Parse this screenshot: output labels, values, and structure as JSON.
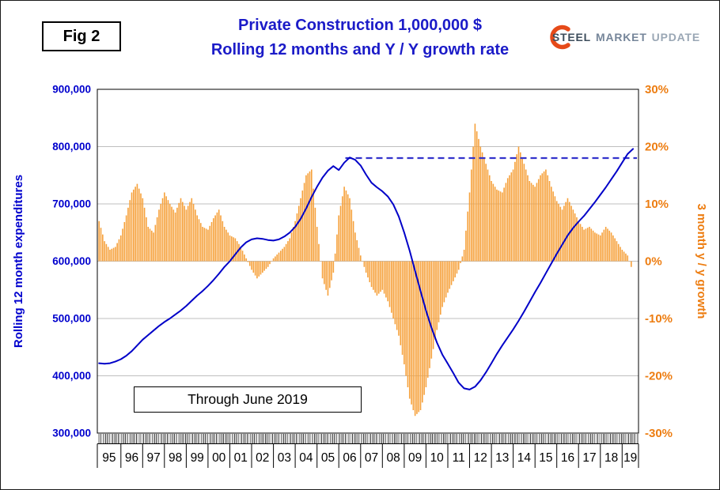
{
  "fig_label": "Fig 2",
  "logo": {
    "steel": "STEEL",
    "market": "MARKET",
    "update": "UPDATE"
  },
  "chart_data": {
    "type": "combo-bar-line",
    "title": "Private Construction 1,000,000 $",
    "subtitle": "Rolling 12 months and Y / Y growth rate",
    "annotation": "Through June 2019",
    "grid": "horizontal",
    "left_axis": {
      "label": "Rolling 12 month expenditures",
      "min": 300000,
      "max": 900000,
      "step": 100000,
      "ticks": [
        "900,000",
        "800,000",
        "700,000",
        "600,000",
        "500,000",
        "400,000",
        "300,000"
      ],
      "color": "#0000cd"
    },
    "right_axis": {
      "label": "3 month y / y growth",
      "min": -30,
      "max": 30,
      "step": 10,
      "ticks": [
        "30%",
        "20%",
        "10%",
        "0%",
        "-10%",
        "-20%",
        "-30%"
      ],
      "color": "#ed7d11"
    },
    "x_axis": {
      "start_year": 1995,
      "data_end": 2019.42,
      "end_label": "June 2019",
      "year_labels": [
        "95",
        "96",
        "97",
        "98",
        "99",
        "00",
        "01",
        "02",
        "03",
        "04",
        "05",
        "06",
        "07",
        "08",
        "09",
        "10",
        "11",
        "12",
        "13",
        "14",
        "15",
        "16",
        "17",
        "18",
        "19"
      ]
    },
    "line_series": {
      "name": "Rolling 12 month expenditures",
      "color": "#0000c8",
      "x_start": 1995.0,
      "x_step": 0.25,
      "values": [
        422000,
        421000,
        422000,
        425000,
        429000,
        435000,
        443000,
        453000,
        463000,
        471000,
        479000,
        487000,
        494000,
        500000,
        507000,
        514000,
        522000,
        531000,
        540000,
        548000,
        557000,
        567000,
        578000,
        590000,
        600000,
        612000,
        624000,
        633000,
        638000,
        640000,
        639000,
        637000,
        636000,
        638000,
        643000,
        650000,
        660000,
        674000,
        692000,
        712000,
        730000,
        746000,
        758000,
        766000,
        759000,
        772000,
        781000,
        777000,
        767000,
        751000,
        737000,
        729000,
        722000,
        713000,
        699000,
        678000,
        650000,
        618000,
        583000,
        548000,
        514000,
        484000,
        458000,
        437000,
        421000,
        405000,
        388000,
        378000,
        376000,
        381000,
        392000,
        406000,
        422000,
        438000,
        453000,
        467000,
        481000,
        496000,
        512000,
        529000,
        546000,
        562000,
        579000,
        596000,
        613000,
        629000,
        645000,
        658000,
        669000,
        679000,
        691000,
        703000,
        716000,
        729000,
        743000,
        757000,
        772000,
        787000,
        796000
      ]
    },
    "bar_series": {
      "name": "3 month y / y growth",
      "unit": "%",
      "color": "#f6a13b",
      "x_start": 1995.0,
      "x_step": 0.25,
      "values": [
        7,
        3.5,
        2,
        2.5,
        4.5,
        8,
        12,
        13.5,
        11,
        6,
        5,
        9,
        12,
        10,
        8.5,
        11,
        9,
        11,
        8,
        6,
        5.5,
        7.5,
        9,
        6,
        4.5,
        4,
        2.5,
        0.5,
        -1.5,
        -3,
        -2,
        -1,
        0.5,
        1.5,
        2.5,
        4,
        7,
        11,
        15,
        16,
        6,
        -3,
        -6,
        -2,
        8,
        13,
        11,
        5,
        1,
        -2,
        -4.5,
        -6,
        -5,
        -7,
        -10,
        -13,
        -18,
        -24,
        -27,
        -26,
        -22,
        -17,
        -12,
        -8,
        -5.5,
        -3.5,
        -1.5,
        2,
        12,
        24,
        20,
        17,
        14,
        12.5,
        12,
        14.5,
        16,
        20,
        17,
        14,
        13,
        15,
        16,
        13,
        10.5,
        9,
        11,
        9,
        7,
        5.5,
        6,
        5,
        4.5,
        6,
        5,
        3.5,
        2,
        1,
        -2
      ]
    },
    "dashed_reference": {
      "value": 780000,
      "x_from": 2006.3,
      "x_to": 2019.68,
      "color": "#3333cc",
      "style": "dashed"
    }
  }
}
